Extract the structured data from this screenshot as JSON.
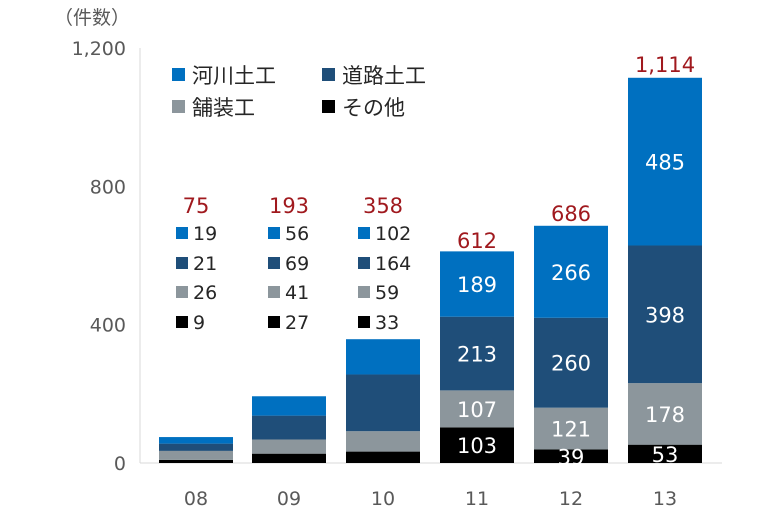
{
  "chart_data": {
    "type": "bar",
    "stacked": true,
    "unit_label": "（件数）",
    "categories": [
      "08",
      "09",
      "10",
      "11",
      "12",
      "13"
    ],
    "ylim": [
      0,
      1200
    ],
    "yticks": [
      "0",
      "400",
      "800",
      "1,200"
    ],
    "ytick_values": [
      0,
      400,
      800,
      1200
    ],
    "grid": false,
    "legend_position": "top-left",
    "series": [
      {
        "name": "その他",
        "color": "#000000",
        "values": [
          9,
          27,
          33,
          103,
          39,
          53
        ]
      },
      {
        "name": "舗装工",
        "color": "#8c969c",
        "values": [
          26,
          41,
          59,
          107,
          121,
          178
        ]
      },
      {
        "name": "道路土工",
        "color": "#1f4e79",
        "values": [
          21,
          69,
          164,
          213,
          260,
          398
        ]
      },
      {
        "name": "河川土工",
        "color": "#0070c0",
        "values": [
          19,
          56,
          102,
          189,
          266,
          485
        ]
      }
    ],
    "totals": [
      "75",
      "193",
      "358",
      "612",
      "686",
      "1,114"
    ],
    "legend": [
      {
        "name": "河川土工",
        "color": "#0070c0"
      },
      {
        "name": "道路土工",
        "color": "#1f4e79"
      },
      {
        "name": "舗装工",
        "color": "#8c969c"
      },
      {
        "name": "その他",
        "color": "#000000"
      }
    ],
    "mini_keys": [
      {
        "category": "08",
        "items": [
          {
            "value": "19",
            "color": "#0070c0"
          },
          {
            "value": "21",
            "color": "#1f4e79"
          },
          {
            "value": "26",
            "color": "#8c969c"
          },
          {
            "value": "9",
            "color": "#000000"
          }
        ]
      },
      {
        "category": "09",
        "items": [
          {
            "value": "56",
            "color": "#0070c0"
          },
          {
            "value": "69",
            "color": "#1f4e79"
          },
          {
            "value": "41",
            "color": "#8c969c"
          },
          {
            "value": "27",
            "color": "#000000"
          }
        ]
      },
      {
        "category": "10",
        "items": [
          {
            "value": "102",
            "color": "#0070c0"
          },
          {
            "value": "164",
            "color": "#1f4e79"
          },
          {
            "value": "59",
            "color": "#8c969c"
          },
          {
            "value": "33",
            "color": "#000000"
          }
        ]
      }
    ],
    "inline_label_categories": [
      "11",
      "12",
      "13"
    ]
  }
}
